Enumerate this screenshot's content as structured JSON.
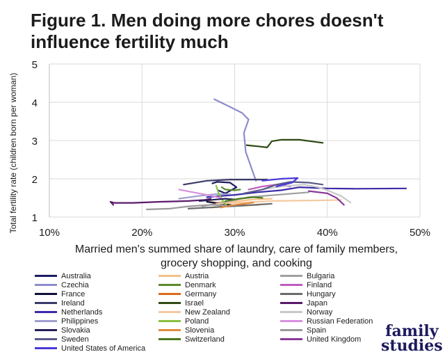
{
  "title_line1": "Figure 1. Men doing more chores doesn't",
  "title_line2": "influence fertility much",
  "logo_line1": "family",
  "logo_line2": "studies",
  "chart_data": {
    "type": "line",
    "title": "Figure 1. Men doing more chores doesn't influence fertility much",
    "xlabel_line1": "Married men's summed share of laundry, care of family members,",
    "xlabel_line2": "grocery shopping, and cooking",
    "ylabel": "Total fertility rate (children born per woman)",
    "xlim": [
      10,
      50
    ],
    "ylim": [
      1,
      5
    ],
    "xticks": [
      10,
      20,
      30,
      40,
      50
    ],
    "xtick_labels": [
      "10%",
      "20%",
      "30%",
      "40%",
      "50%"
    ],
    "yticks": [
      1,
      2,
      3,
      4,
      5
    ],
    "ytick_labels": [
      "1",
      "2",
      "3",
      "4",
      "5"
    ],
    "grid": true,
    "series": [
      {
        "name": "Australia",
        "color": "#1c1b63",
        "points": [
          [
            27.6,
            1.88
          ],
          [
            28.1,
            1.92
          ],
          [
            29.5,
            1.9
          ],
          [
            30.2,
            1.78
          ],
          [
            29.0,
            1.62
          ],
          [
            28.2,
            1.7
          ]
        ]
      },
      {
        "name": "Austria",
        "color": "#f5c088",
        "points": [
          [
            26.8,
            1.44
          ],
          [
            28.0,
            1.38
          ],
          [
            30.5,
            1.42
          ],
          [
            32.0,
            1.46
          ],
          [
            34.0,
            1.48
          ]
        ]
      },
      {
        "name": "Bulgaria",
        "color": "#a0a0a0",
        "points": [
          [
            26.5,
            1.28
          ],
          [
            29.0,
            1.4
          ],
          [
            31.5,
            1.52
          ],
          [
            34.5,
            1.58
          ],
          [
            38.0,
            1.65
          ]
        ]
      },
      {
        "name": "Czechia",
        "color": "#8c8ccc",
        "points": [
          [
            27.8,
            4.08
          ],
          [
            29.5,
            3.88
          ],
          [
            30.8,
            3.72
          ],
          [
            31.5,
            3.55
          ],
          [
            31.0,
            3.2
          ],
          [
            31.2,
            2.7
          ],
          [
            32.3,
            1.95
          ]
        ]
      },
      {
        "name": "Denmark",
        "color": "#5a8a2a",
        "points": [
          [
            28.6,
            1.78
          ],
          [
            29.0,
            1.72
          ],
          [
            30.0,
            1.7
          ],
          [
            30.6,
            1.72
          ]
        ]
      },
      {
        "name": "Finland",
        "color": "#c05cc0",
        "points": [
          [
            31.5,
            1.72
          ],
          [
            33.0,
            1.8
          ],
          [
            34.5,
            1.85
          ],
          [
            36.0,
            1.8
          ]
        ]
      },
      {
        "name": "France",
        "color": "#0f0f3a",
        "points": [
          [
            27.0,
            1.4
          ],
          [
            28.5,
            1.35
          ],
          [
            30.0,
            1.3
          ],
          [
            31.0,
            1.32
          ]
        ]
      },
      {
        "name": "Germany",
        "color": "#d96a1a",
        "points": [
          [
            27.5,
            1.25
          ],
          [
            30.0,
            1.3
          ],
          [
            32.5,
            1.32
          ]
        ]
      },
      {
        "name": "Hungary",
        "color": "#6b6b6b",
        "points": [
          [
            25.0,
            1.22
          ],
          [
            28.0,
            1.26
          ],
          [
            31.0,
            1.3
          ],
          [
            34.0,
            1.35
          ]
        ]
      },
      {
        "name": "Ireland",
        "color": "#3a3a68",
        "points": [
          [
            24.5,
            1.85
          ],
          [
            27.0,
            1.95
          ],
          [
            29.5,
            1.98
          ],
          [
            32.0,
            1.98
          ],
          [
            33.5,
            1.98
          ]
        ]
      },
      {
        "name": "Israel",
        "color": "#2d4a14",
        "points": [
          [
            31.3,
            2.88
          ],
          [
            31.6,
            2.87
          ],
          [
            32.5,
            2.85
          ],
          [
            33.5,
            2.82
          ],
          [
            33.6,
            2.85
          ],
          [
            34.0,
            2.98
          ],
          [
            35.0,
            3.02
          ],
          [
            37.0,
            3.02
          ],
          [
            39.5,
            2.94
          ]
        ]
      },
      {
        "name": "Japan",
        "color": "#5a1a6a",
        "points": [
          [
            16.9,
            1.32
          ],
          [
            16.6,
            1.4
          ],
          [
            17.0,
            1.37
          ],
          [
            19.0,
            1.37
          ],
          [
            22.0,
            1.4
          ],
          [
            25.0,
            1.42
          ],
          [
            26.8,
            1.45
          ],
          [
            27.4,
            1.48
          ]
        ]
      },
      {
        "name": "Netherlands",
        "color": "#3a2aa8",
        "points": [
          [
            27.0,
            1.52
          ],
          [
            30.0,
            1.58
          ],
          [
            32.5,
            1.65
          ],
          [
            35.0,
            1.7
          ],
          [
            37.0,
            1.78
          ],
          [
            40.0,
            1.75
          ],
          [
            43.0,
            1.74
          ],
          [
            48.5,
            1.75
          ]
        ]
      },
      {
        "name": "New Zealand",
        "color": "#f5c8a0",
        "points": [
          [
            28.0,
            1.35
          ],
          [
            31.0,
            1.38
          ],
          [
            34.0,
            1.42
          ],
          [
            37.0,
            1.43
          ],
          [
            40.0,
            1.44
          ],
          [
            41.5,
            1.45
          ]
        ]
      },
      {
        "name": "Norway",
        "color": "#c8c8c8",
        "points": [
          [
            33.0,
            1.72
          ],
          [
            35.0,
            1.8
          ],
          [
            37.5,
            1.85
          ],
          [
            39.0,
            1.78
          ],
          [
            40.0,
            1.7
          ],
          [
            41.5,
            1.55
          ],
          [
            42.5,
            1.38
          ]
        ]
      },
      {
        "name": "Philippines",
        "color": "#a09ed0",
        "points": [
          [
            24.0,
            1.48
          ],
          [
            26.0,
            1.55
          ],
          [
            28.0,
            1.6
          ],
          [
            29.5,
            1.6
          ]
        ]
      },
      {
        "name": "Poland",
        "color": "#8ac040",
        "points": [
          [
            28.0,
            1.82
          ],
          [
            28.3,
            1.6
          ],
          [
            28.8,
            1.4
          ],
          [
            29.2,
            1.28
          ]
        ]
      },
      {
        "name": "Russian Federation",
        "color": "#d890e0",
        "points": [
          [
            24.0,
            1.72
          ],
          [
            25.5,
            1.65
          ],
          [
            27.0,
            1.58
          ],
          [
            28.5,
            1.5
          ]
        ]
      },
      {
        "name": "Slovakia",
        "color": "#24205a",
        "points": [
          [
            26.2,
            1.42
          ],
          [
            27.5,
            1.45
          ],
          [
            29.0,
            1.48
          ],
          [
            30.0,
            1.46
          ]
        ]
      },
      {
        "name": "Slovenia",
        "color": "#e28a40",
        "points": [
          [
            28.5,
            1.25
          ],
          [
            29.5,
            1.3
          ],
          [
            31.0,
            1.35
          ],
          [
            32.0,
            1.38
          ]
        ]
      },
      {
        "name": "Spain",
        "color": "#9a9a9a",
        "points": [
          [
            20.5,
            1.2
          ],
          [
            23.0,
            1.22
          ],
          [
            25.0,
            1.28
          ],
          [
            27.5,
            1.32
          ],
          [
            29.0,
            1.3
          ]
        ]
      },
      {
        "name": "Sweden",
        "color": "#5a5a8a",
        "points": [
          [
            31.0,
            1.62
          ],
          [
            33.0,
            1.72
          ],
          [
            34.5,
            1.85
          ],
          [
            36.0,
            1.92
          ],
          [
            38.0,
            1.9
          ],
          [
            39.5,
            1.85
          ]
        ]
      },
      {
        "name": "Switzerland",
        "color": "#4a7a1c",
        "points": [
          [
            29.0,
            1.42
          ],
          [
            30.5,
            1.48
          ],
          [
            32.0,
            1.52
          ],
          [
            33.0,
            1.5
          ]
        ]
      },
      {
        "name": "United Kingdom",
        "color": "#8a3a9a",
        "points": [
          [
            38.0,
            1.68
          ],
          [
            40.0,
            1.62
          ],
          [
            41.0,
            1.5
          ],
          [
            41.8,
            1.32
          ]
        ]
      },
      {
        "name": "United States of America",
        "color": "#4a3ad8",
        "points": [
          [
            33.0,
            1.95
          ],
          [
            35.0,
            2.0
          ],
          [
            36.8,
            2.02
          ],
          [
            36.2,
            1.9
          ],
          [
            34.5,
            1.8
          ]
        ]
      }
    ]
  }
}
